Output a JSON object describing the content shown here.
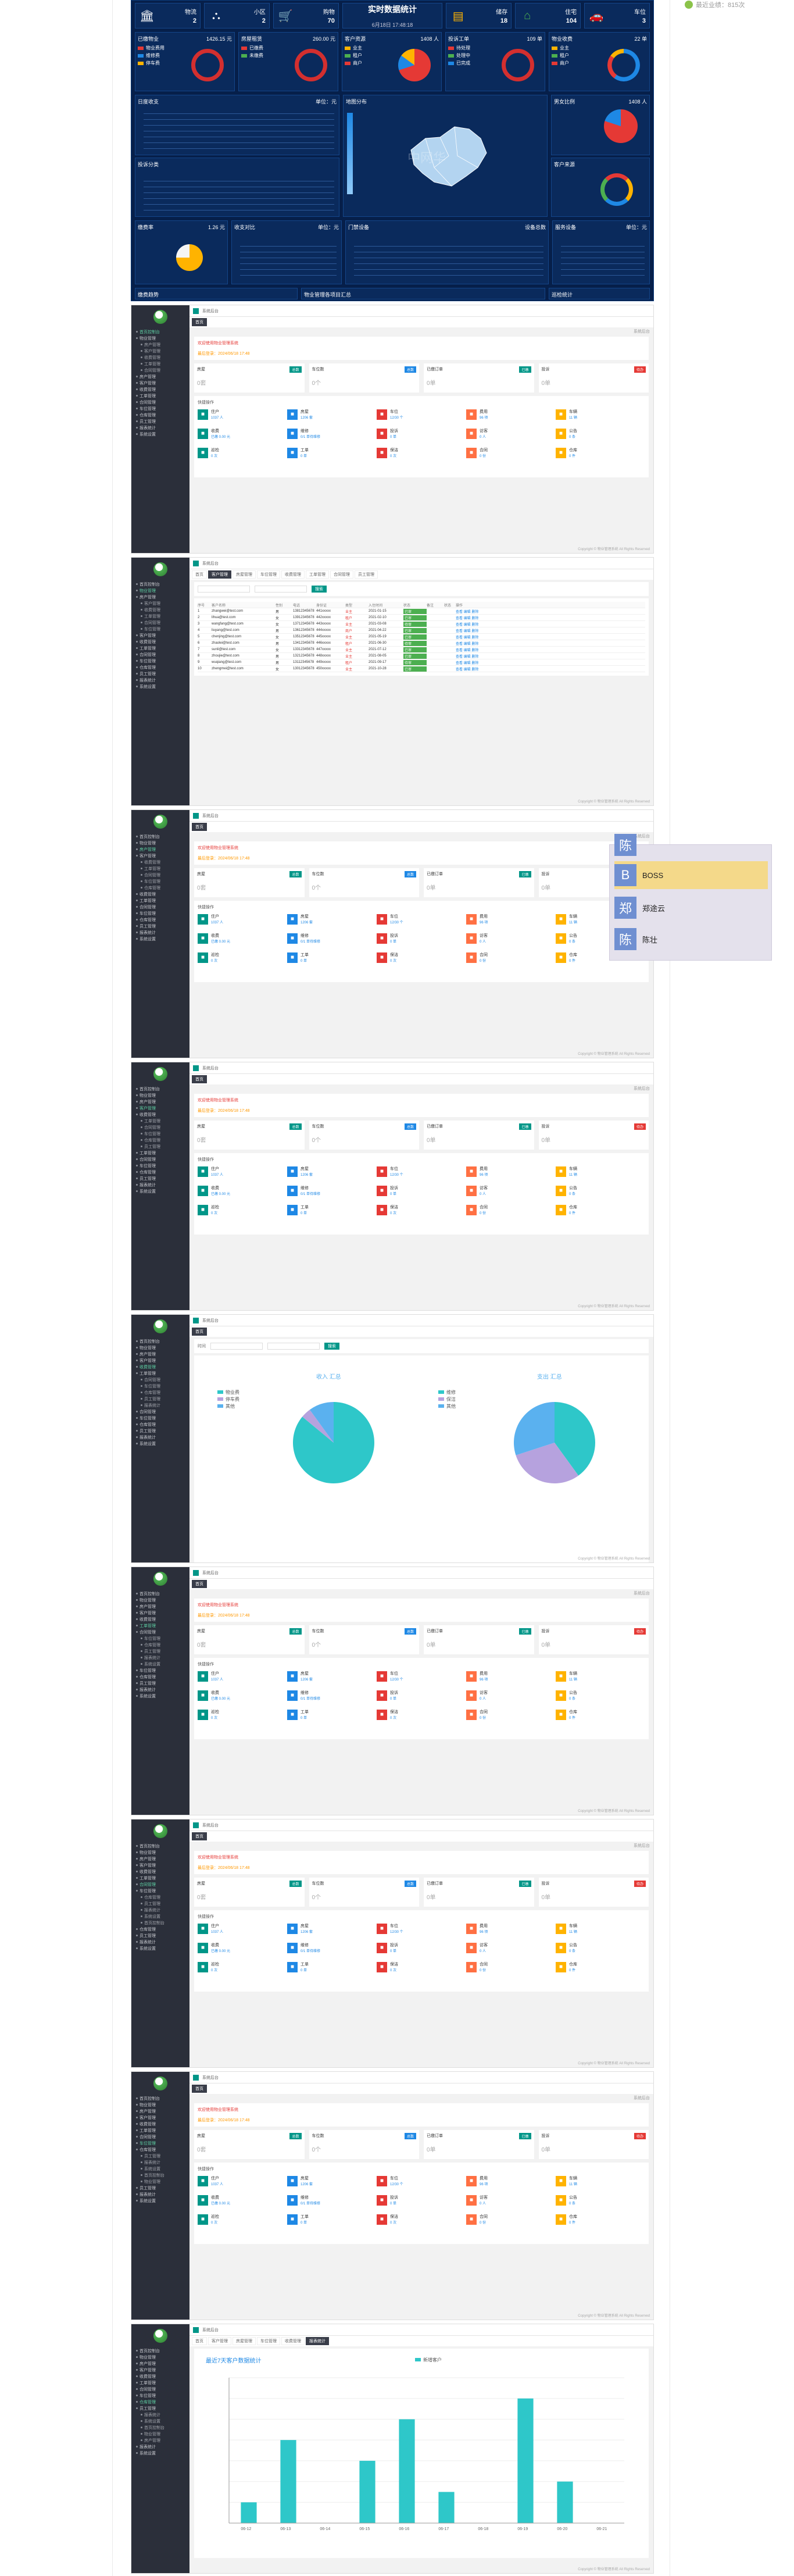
{
  "topbadge": "最近业绩：815次",
  "dashboard": {
    "kpis": [
      {
        "label": "物流",
        "value": "2",
        "icon": "bank-icon"
      },
      {
        "label": "小区",
        "value": "2",
        "icon": "org-chart-icon"
      },
      {
        "label": "购物",
        "value": "70",
        "icon": "cart-icon"
      },
      {
        "label": "储存",
        "value": "18",
        "icon": "store-icon"
      },
      {
        "label": "住宅",
        "value": "104",
        "icon": "home-icon"
      },
      {
        "label": "车位",
        "value": "3",
        "icon": "car-icon"
      }
    ],
    "title": "实时数据统计",
    "date": "6月18日 17:48:18",
    "panels": [
      {
        "title": "已缴物业",
        "right": "1426.15 元"
      },
      {
        "title": "房屋租赁",
        "right": "260.00 元"
      },
      {
        "title": "客户资源",
        "right": "1408 人"
      },
      {
        "title": "投诉工单",
        "right": "109 单"
      },
      {
        "title": "物业收费",
        "right": "22 单"
      }
    ],
    "legend1": [
      "物业费用",
      "维修费",
      "停车费"
    ],
    "legend2": [
      "已缴费",
      "未缴费"
    ],
    "legend3": [
      "业主",
      "租户",
      "商户"
    ],
    "legend4": [
      "待处理",
      "处理中",
      "已完成"
    ],
    "mid_titles": [
      "日度收支",
      "地图分布",
      "男女比例"
    ],
    "mid_right": [
      "单位：元",
      "",
      "1408 人"
    ],
    "low_titles": [
      "投诉分类",
      "客户来源"
    ],
    "bottom_titles": [
      "缴费率",
      "收支对比",
      "门禁设备",
      "服务设备"
    ],
    "bottom_right": [
      "1.26 元",
      "单位：元",
      "设备总数",
      "单位：元"
    ],
    "footer_titles": [
      "缴费趋势",
      "物业管理各项目汇总",
      "巡检统计"
    ],
    "mapwatermark": "中网华"
  },
  "admin": {
    "topbar": "系统后台",
    "tab_home": "首页",
    "notice_red": "欢迎使用物业管理系统",
    "notice_orange": "最后登录：2024/06/18 17:48",
    "stats": [
      {
        "label": "房屋",
        "badge": "总数",
        "value": "0套",
        "badgeColor": "#009688"
      },
      {
        "label": "车位数",
        "badge": "总数",
        "value": "0个",
        "badgeColor": "#1e88e5"
      },
      {
        "label": "已缴订单",
        "badge": "已缴",
        "value": "0单",
        "badgeColor": "#009688"
      },
      {
        "label": "投诉",
        "badge": "待办",
        "value": "0单",
        "badgeColor": "#e53935"
      }
    ],
    "quick_title": "快捷操作",
    "quick": [
      {
        "t": "住户",
        "n": "1037 人",
        "c": "#009688",
        "icon": "user-icon"
      },
      {
        "t": "房屋",
        "n": "1206 套",
        "c": "#1e88e5",
        "icon": "house-icon"
      },
      {
        "t": "车位",
        "n": "12/30 个",
        "c": "#e53935",
        "icon": "car-icon"
      },
      {
        "t": "费用",
        "n": "96 项",
        "c": "#ff7043",
        "icon": "money-icon"
      },
      {
        "t": "车辆",
        "n": "11 辆",
        "c": "#ffb300",
        "icon": "vehicle-icon"
      },
      {
        "t": "收费",
        "n": "已缴 0.00 元",
        "c": "#009688",
        "icon": "pay-icon"
      },
      {
        "t": "维修",
        "n": "0/1 单待维修",
        "c": "#1e88e5",
        "icon": "wrench-icon"
      },
      {
        "t": "投诉",
        "n": "0 单",
        "c": "#e53935",
        "icon": "complaint-icon"
      },
      {
        "t": "访客",
        "n": "0 人",
        "c": "#ff7043",
        "icon": "visitor-icon"
      },
      {
        "t": "公告",
        "n": "0 条",
        "c": "#ffb300",
        "icon": "notice-icon"
      },
      {
        "t": "巡检",
        "n": "0 次",
        "c": "#009688",
        "icon": "patrol-icon"
      },
      {
        "t": "工单",
        "n": "0 单",
        "c": "#1e88e5",
        "icon": "order-icon"
      },
      {
        "t": "保洁",
        "n": "0 次",
        "c": "#e53935",
        "icon": "clean-icon"
      },
      {
        "t": "合同",
        "n": "0 份",
        "c": "#ff7043",
        "icon": "contract-icon"
      },
      {
        "t": "仓库",
        "n": "0 件",
        "c": "#ffb300",
        "icon": "storage-icon"
      }
    ],
    "footer": "Copyright © 物业管理系统 All Rights Reserved",
    "side_items": [
      "首页控制台",
      "物业管理",
      "房产管理",
      "客户管理",
      "收费管理",
      "工单管理",
      "合同管理",
      "车位管理",
      "仓库管理",
      "员工管理",
      "报表统计",
      "系统设置"
    ]
  },
  "table_page": {
    "tabs": [
      "首页",
      "客户管理",
      "房屋管理",
      "车位管理",
      "收费管理",
      "工单管理",
      "合同管理",
      "员工管理"
    ],
    "headers": [
      "序号",
      "客户名称",
      "性别",
      "电话",
      "身份证",
      "类型",
      "入住时间",
      "状态",
      "备注",
      "状态",
      "操作"
    ],
    "rows": [
      [
        "1",
        "zhangwei@test.com",
        "男",
        "13812345678",
        "441xxxxx",
        "业主",
        "2021-01-15",
        "已审",
        "",
        "",
        "查看 编辑 删除"
      ],
      [
        "2",
        "lihua@test.com",
        "女",
        "13912345678",
        "442xxxxx",
        "租户",
        "2021-02-10",
        "已审",
        "",
        "",
        "查看 编辑 删除"
      ],
      [
        "3",
        "wangfang@test.com",
        "女",
        "13712345678",
        "443xxxxx",
        "业主",
        "2021-03-08",
        "待审",
        "",
        "",
        "查看 编辑 删除"
      ],
      [
        "4",
        "liuyang@test.com",
        "男",
        "13612345678",
        "444xxxxx",
        "商户",
        "2021-04-22",
        "已审",
        "",
        "",
        "查看 编辑 删除"
      ],
      [
        "5",
        "chenjing@test.com",
        "女",
        "13512345678",
        "445xxxxx",
        "业主",
        "2021-05-19",
        "已审",
        "",
        "",
        "查看 编辑 删除"
      ],
      [
        "6",
        "zhaolei@test.com",
        "男",
        "13412345678",
        "446xxxxx",
        "租户",
        "2021-06-30",
        "待审",
        "",
        "",
        "查看 编辑 删除"
      ],
      [
        "7",
        "sunli@test.com",
        "女",
        "13312345678",
        "447xxxxx",
        "业主",
        "2021-07-12",
        "已审",
        "",
        "",
        "查看 编辑 删除"
      ],
      [
        "8",
        "zhoujie@test.com",
        "男",
        "13212345678",
        "448xxxxx",
        "业主",
        "2021-08-05",
        "已审",
        "",
        "",
        "查看 编辑 删除"
      ],
      [
        "9",
        "wuqiang@test.com",
        "男",
        "13112345678",
        "449xxxxx",
        "租户",
        "2021-09-17",
        "待审",
        "",
        "",
        "查看 编辑 删除"
      ],
      [
        "10",
        "zhengmei@test.com",
        "女",
        "13012345678",
        "450xxxxx",
        "业主",
        "2021-10-28",
        "已审",
        "",
        "",
        "查看 编辑 删除"
      ]
    ]
  },
  "float_menu": {
    "items": [
      {
        "avatar": "陈",
        "label": ""
      },
      {
        "avatar": "B",
        "label": "BOSS"
      },
      {
        "avatar": "郑",
        "label": "郑途云"
      },
      {
        "avatar": "陈",
        "label": "陈壮"
      }
    ],
    "selected": 1
  },
  "pie_page": {
    "filter_label": "时间",
    "search_btn": "搜索",
    "left_title": "收入 汇总",
    "right_title": "支出 汇总"
  },
  "bar_page": {
    "title": "最近7天客户数据统计",
    "legend": "新增客户",
    "tabs": [
      "首页",
      "客户管理",
      "房屋管理",
      "车位管理",
      "收费管理",
      "报表统计"
    ]
  },
  "chart_data": [
    {
      "type": "pie",
      "title": "收入 汇总",
      "categories": [
        "物业费",
        "停车费",
        "其他"
      ],
      "values": [
        86,
        4,
        10
      ],
      "colors": [
        "#2ec7c9",
        "#b6a2de",
        "#5ab1ef"
      ]
    },
    {
      "type": "pie",
      "title": "支出 汇总",
      "categories": [
        "维修",
        "保洁",
        "其他"
      ],
      "values": [
        40,
        30,
        30
      ],
      "colors": [
        "#2ec7c9",
        "#b6a2de",
        "#5ab1ef"
      ]
    },
    {
      "type": "bar",
      "title": "最近7天客户数据统计",
      "categories": [
        "06-12",
        "06-13",
        "06-14",
        "06-15",
        "06-16",
        "06-17",
        "06-18",
        "06-19",
        "06-20",
        "06-21"
      ],
      "series": [
        {
          "name": "新增客户",
          "values": [
            2,
            8,
            0,
            6,
            10,
            3,
            0,
            12,
            4,
            0
          ]
        }
      ],
      "ylim": [
        0,
        14
      ],
      "color": "#2ec7c9"
    }
  ]
}
